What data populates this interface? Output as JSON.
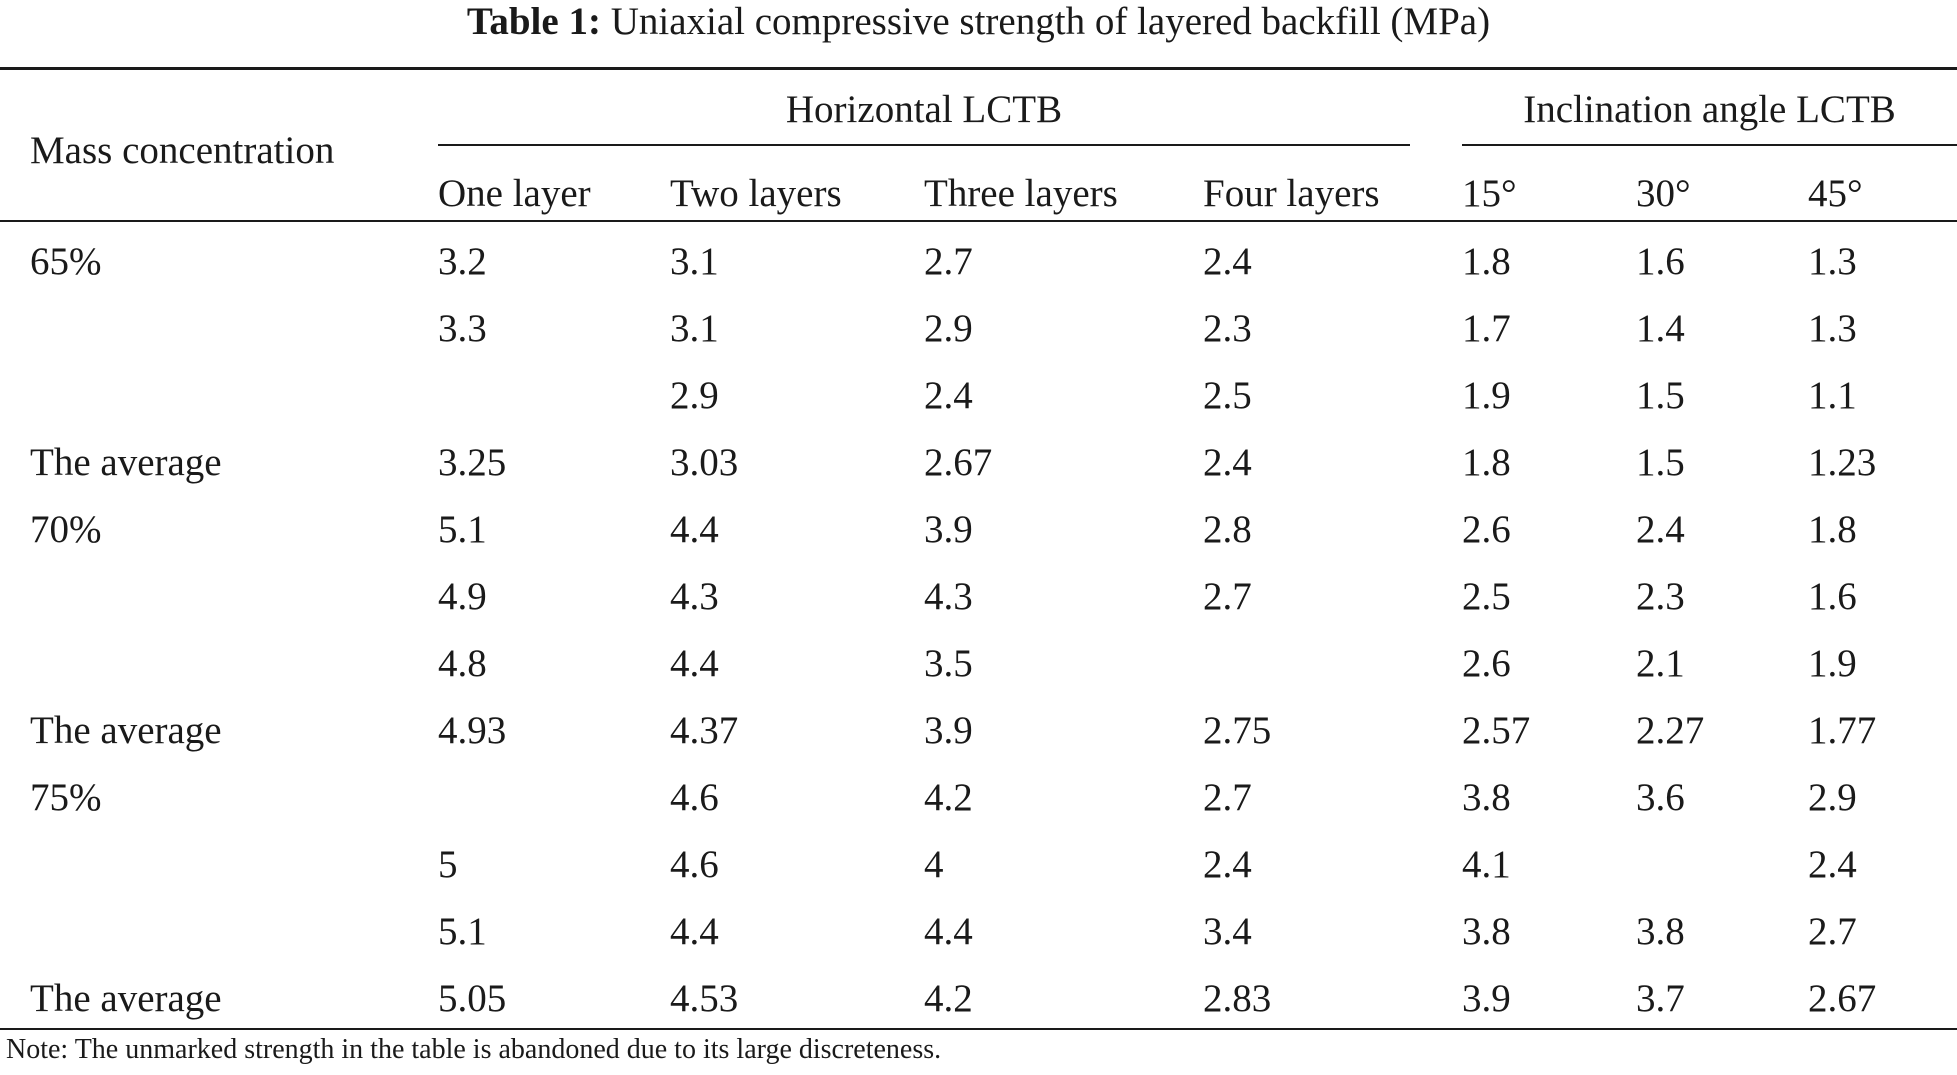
{
  "caption": {
    "label": "Table 1:",
    "text": "Uniaxial compressive strength of layered backfill (MPa)"
  },
  "header": {
    "row_label": "Mass concentration",
    "group_horizontal": "Horizontal LCTB",
    "group_inclination": "Inclination angle LCTB",
    "columns": [
      "One layer",
      "Two layers",
      "Three layers",
      "Four layers",
      "15°",
      "30°",
      "45°"
    ]
  },
  "rows": [
    {
      "label": "65%",
      "values": [
        "3.2",
        "3.1",
        "2.7",
        "2.4",
        "1.8",
        "1.6",
        "1.3"
      ]
    },
    {
      "label": "",
      "values": [
        "3.3",
        "3.1",
        "2.9",
        "2.3",
        "1.7",
        "1.4",
        "1.3"
      ]
    },
    {
      "label": "",
      "values": [
        "",
        "2.9",
        "2.4",
        "2.5",
        "1.9",
        "1.5",
        "1.1"
      ]
    },
    {
      "label": "The average",
      "values": [
        "3.25",
        "3.03",
        "2.67",
        "2.4",
        "1.8",
        "1.5",
        "1.23"
      ]
    },
    {
      "label": "70%",
      "values": [
        "5.1",
        "4.4",
        "3.9",
        "2.8",
        "2.6",
        "2.4",
        "1.8"
      ]
    },
    {
      "label": "",
      "values": [
        "4.9",
        "4.3",
        "4.3",
        "2.7",
        "2.5",
        "2.3",
        "1.6"
      ]
    },
    {
      "label": "",
      "values": [
        "4.8",
        "4.4",
        "3.5",
        "",
        "2.6",
        "2.1",
        "1.9"
      ]
    },
    {
      "label": "The average",
      "values": [
        "4.93",
        "4.37",
        "3.9",
        "2.75",
        "2.57",
        "2.27",
        "1.77"
      ]
    },
    {
      "label": "75%",
      "values": [
        "",
        "4.6",
        "4.2",
        "2.7",
        "3.8",
        "3.6",
        "2.9"
      ]
    },
    {
      "label": "",
      "values": [
        "5",
        "4.6",
        "4",
        "2.4",
        "4.1",
        "",
        "2.4"
      ]
    },
    {
      "label": "",
      "values": [
        "5.1",
        "4.4",
        "4.4",
        "3.4",
        "3.8",
        "3.8",
        "2.7"
      ]
    },
    {
      "label": "The average",
      "values": [
        "5.05",
        "4.53",
        "4.2",
        "2.83",
        "3.9",
        "3.7",
        "2.67"
      ]
    }
  ],
  "note": "Note: The unmarked strength in the table is abandoned due to its large discreteness."
}
